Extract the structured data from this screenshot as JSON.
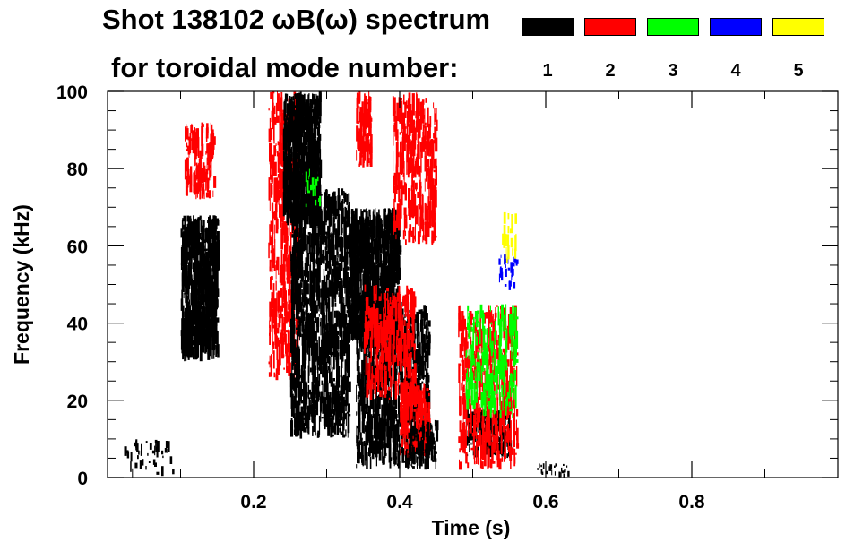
{
  "chart_data": {
    "type": "heatmap",
    "title_line1": "Shot 138102 ωB(ω) spectrum",
    "title_line2": "for toroidal mode number:",
    "xlabel": "Time (s)",
    "ylabel": "Frequency (kHz)",
    "xlim": [
      0.0,
      1.0
    ],
    "ylim": [
      0,
      100
    ],
    "xticks": [
      {
        "value": 0.2,
        "label": "0.2"
      },
      {
        "value": 0.4,
        "label": "0.4"
      },
      {
        "value": 0.6,
        "label": "0.6"
      },
      {
        "value": 0.8,
        "label": "0.8"
      }
    ],
    "yticks": [
      {
        "value": 0,
        "label": "0"
      },
      {
        "value": 20,
        "label": "20"
      },
      {
        "value": 40,
        "label": "40"
      },
      {
        "value": 60,
        "label": "60"
      },
      {
        "value": 80,
        "label": "80"
      },
      {
        "value": 100,
        "label": "100"
      }
    ],
    "legend": [
      {
        "mode": "1",
        "color": "#000000"
      },
      {
        "mode": "2",
        "color": "#ff0000"
      },
      {
        "mode": "3",
        "color": "#00ff00"
      },
      {
        "mode": "4",
        "color": "#0000ff"
      },
      {
        "mode": "5",
        "color": "#ffff00"
      }
    ],
    "regions": [
      {
        "mode": "1",
        "t": [
          0.1,
          0.15
        ],
        "f": [
          30,
          68
        ],
        "density": 0.95
      },
      {
        "mode": "2",
        "t": [
          0.105,
          0.145
        ],
        "f": [
          72,
          92
        ],
        "density": 0.45
      },
      {
        "mode": "2",
        "t": [
          0.22,
          0.26
        ],
        "f": [
          25,
          100
        ],
        "density": 0.35
      },
      {
        "mode": "1",
        "t": [
          0.24,
          0.29
        ],
        "f": [
          65,
          100
        ],
        "density": 0.95
      },
      {
        "mode": "1",
        "t": [
          0.25,
          0.33
        ],
        "f": [
          10,
          75
        ],
        "density": 0.55
      },
      {
        "mode": "3",
        "t": [
          0.27,
          0.29
        ],
        "f": [
          70,
          80
        ],
        "density": 0.2
      },
      {
        "mode": "2",
        "t": [
          0.34,
          0.36
        ],
        "f": [
          80,
          100
        ],
        "density": 0.7
      },
      {
        "mode": "1",
        "t": [
          0.33,
          0.4
        ],
        "f": [
          35,
          70
        ],
        "density": 0.9
      },
      {
        "mode": "1",
        "t": [
          0.34,
          0.44
        ],
        "f": [
          2,
          45
        ],
        "density": 0.5
      },
      {
        "mode": "2",
        "t": [
          0.35,
          0.42
        ],
        "f": [
          20,
          50
        ],
        "density": 0.35
      },
      {
        "mode": "2",
        "t": [
          0.39,
          0.45
        ],
        "f": [
          60,
          100
        ],
        "density": 0.35
      },
      {
        "mode": "2",
        "t": [
          0.4,
          0.44
        ],
        "f": [
          5,
          25
        ],
        "density": 0.6
      },
      {
        "mode": "1",
        "t": [
          0.41,
          0.45
        ],
        "f": [
          2,
          15
        ],
        "density": 0.6
      },
      {
        "mode": "1",
        "t": [
          0.49,
          0.55
        ],
        "f": [
          5,
          18
        ],
        "density": 0.7
      },
      {
        "mode": "2",
        "t": [
          0.48,
          0.56
        ],
        "f": [
          2,
          45
        ],
        "density": 0.3
      },
      {
        "mode": "3",
        "t": [
          0.49,
          0.56
        ],
        "f": [
          15,
          45
        ],
        "density": 0.25
      },
      {
        "mode": "4",
        "t": [
          0.535,
          0.56
        ],
        "f": [
          48,
          58
        ],
        "density": 0.3
      },
      {
        "mode": "5",
        "t": [
          0.54,
          0.56
        ],
        "f": [
          55,
          70
        ],
        "density": 0.2
      },
      {
        "mode": "1",
        "t": [
          0.02,
          0.09
        ],
        "f": [
          0,
          10
        ],
        "density": 0.15
      },
      {
        "mode": "1",
        "t": [
          0.58,
          0.63
        ],
        "f": [
          0,
          4
        ],
        "density": 0.3
      }
    ]
  }
}
